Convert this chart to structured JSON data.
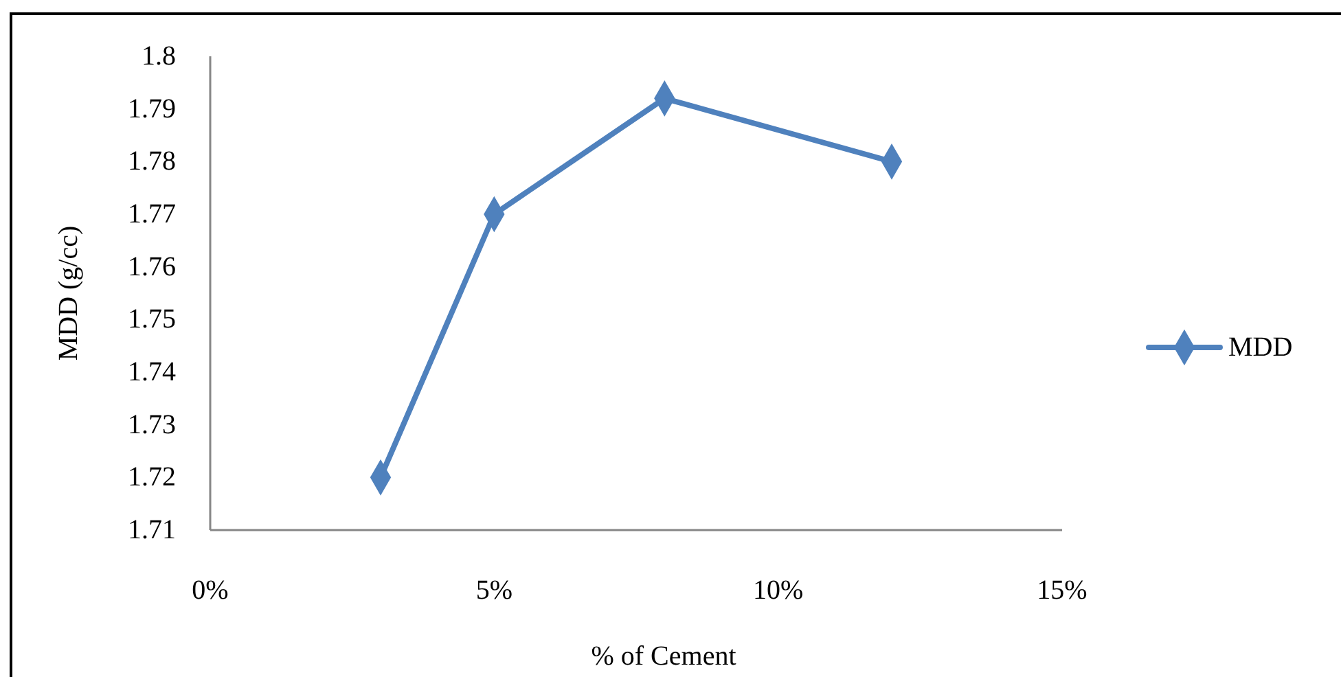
{
  "chart_data": {
    "type": "line",
    "xlabel": "% of Cement",
    "ylabel": "MDD (g/cc)",
    "x": [
      3,
      5,
      8,
      12
    ],
    "series": [
      {
        "name": "MDD",
        "color": "#4f81bd",
        "values": [
          1.72,
          1.77,
          1.792,
          1.78
        ]
      }
    ],
    "xlim": [
      0,
      15
    ],
    "xticks": [
      {
        "value": 0,
        "label": "0%"
      },
      {
        "value": 5,
        "label": "5%"
      },
      {
        "value": 10,
        "label": "10%"
      },
      {
        "value": 15,
        "label": "15%"
      }
    ],
    "ylim": [
      1.71,
      1.8
    ],
    "yticks": [
      1.71,
      1.72,
      1.73,
      1.74,
      1.75,
      1.76,
      1.77,
      1.78,
      1.79,
      1.8
    ],
    "grid": false,
    "legend": "right",
    "marker": "diamond",
    "line_style": "solid"
  }
}
